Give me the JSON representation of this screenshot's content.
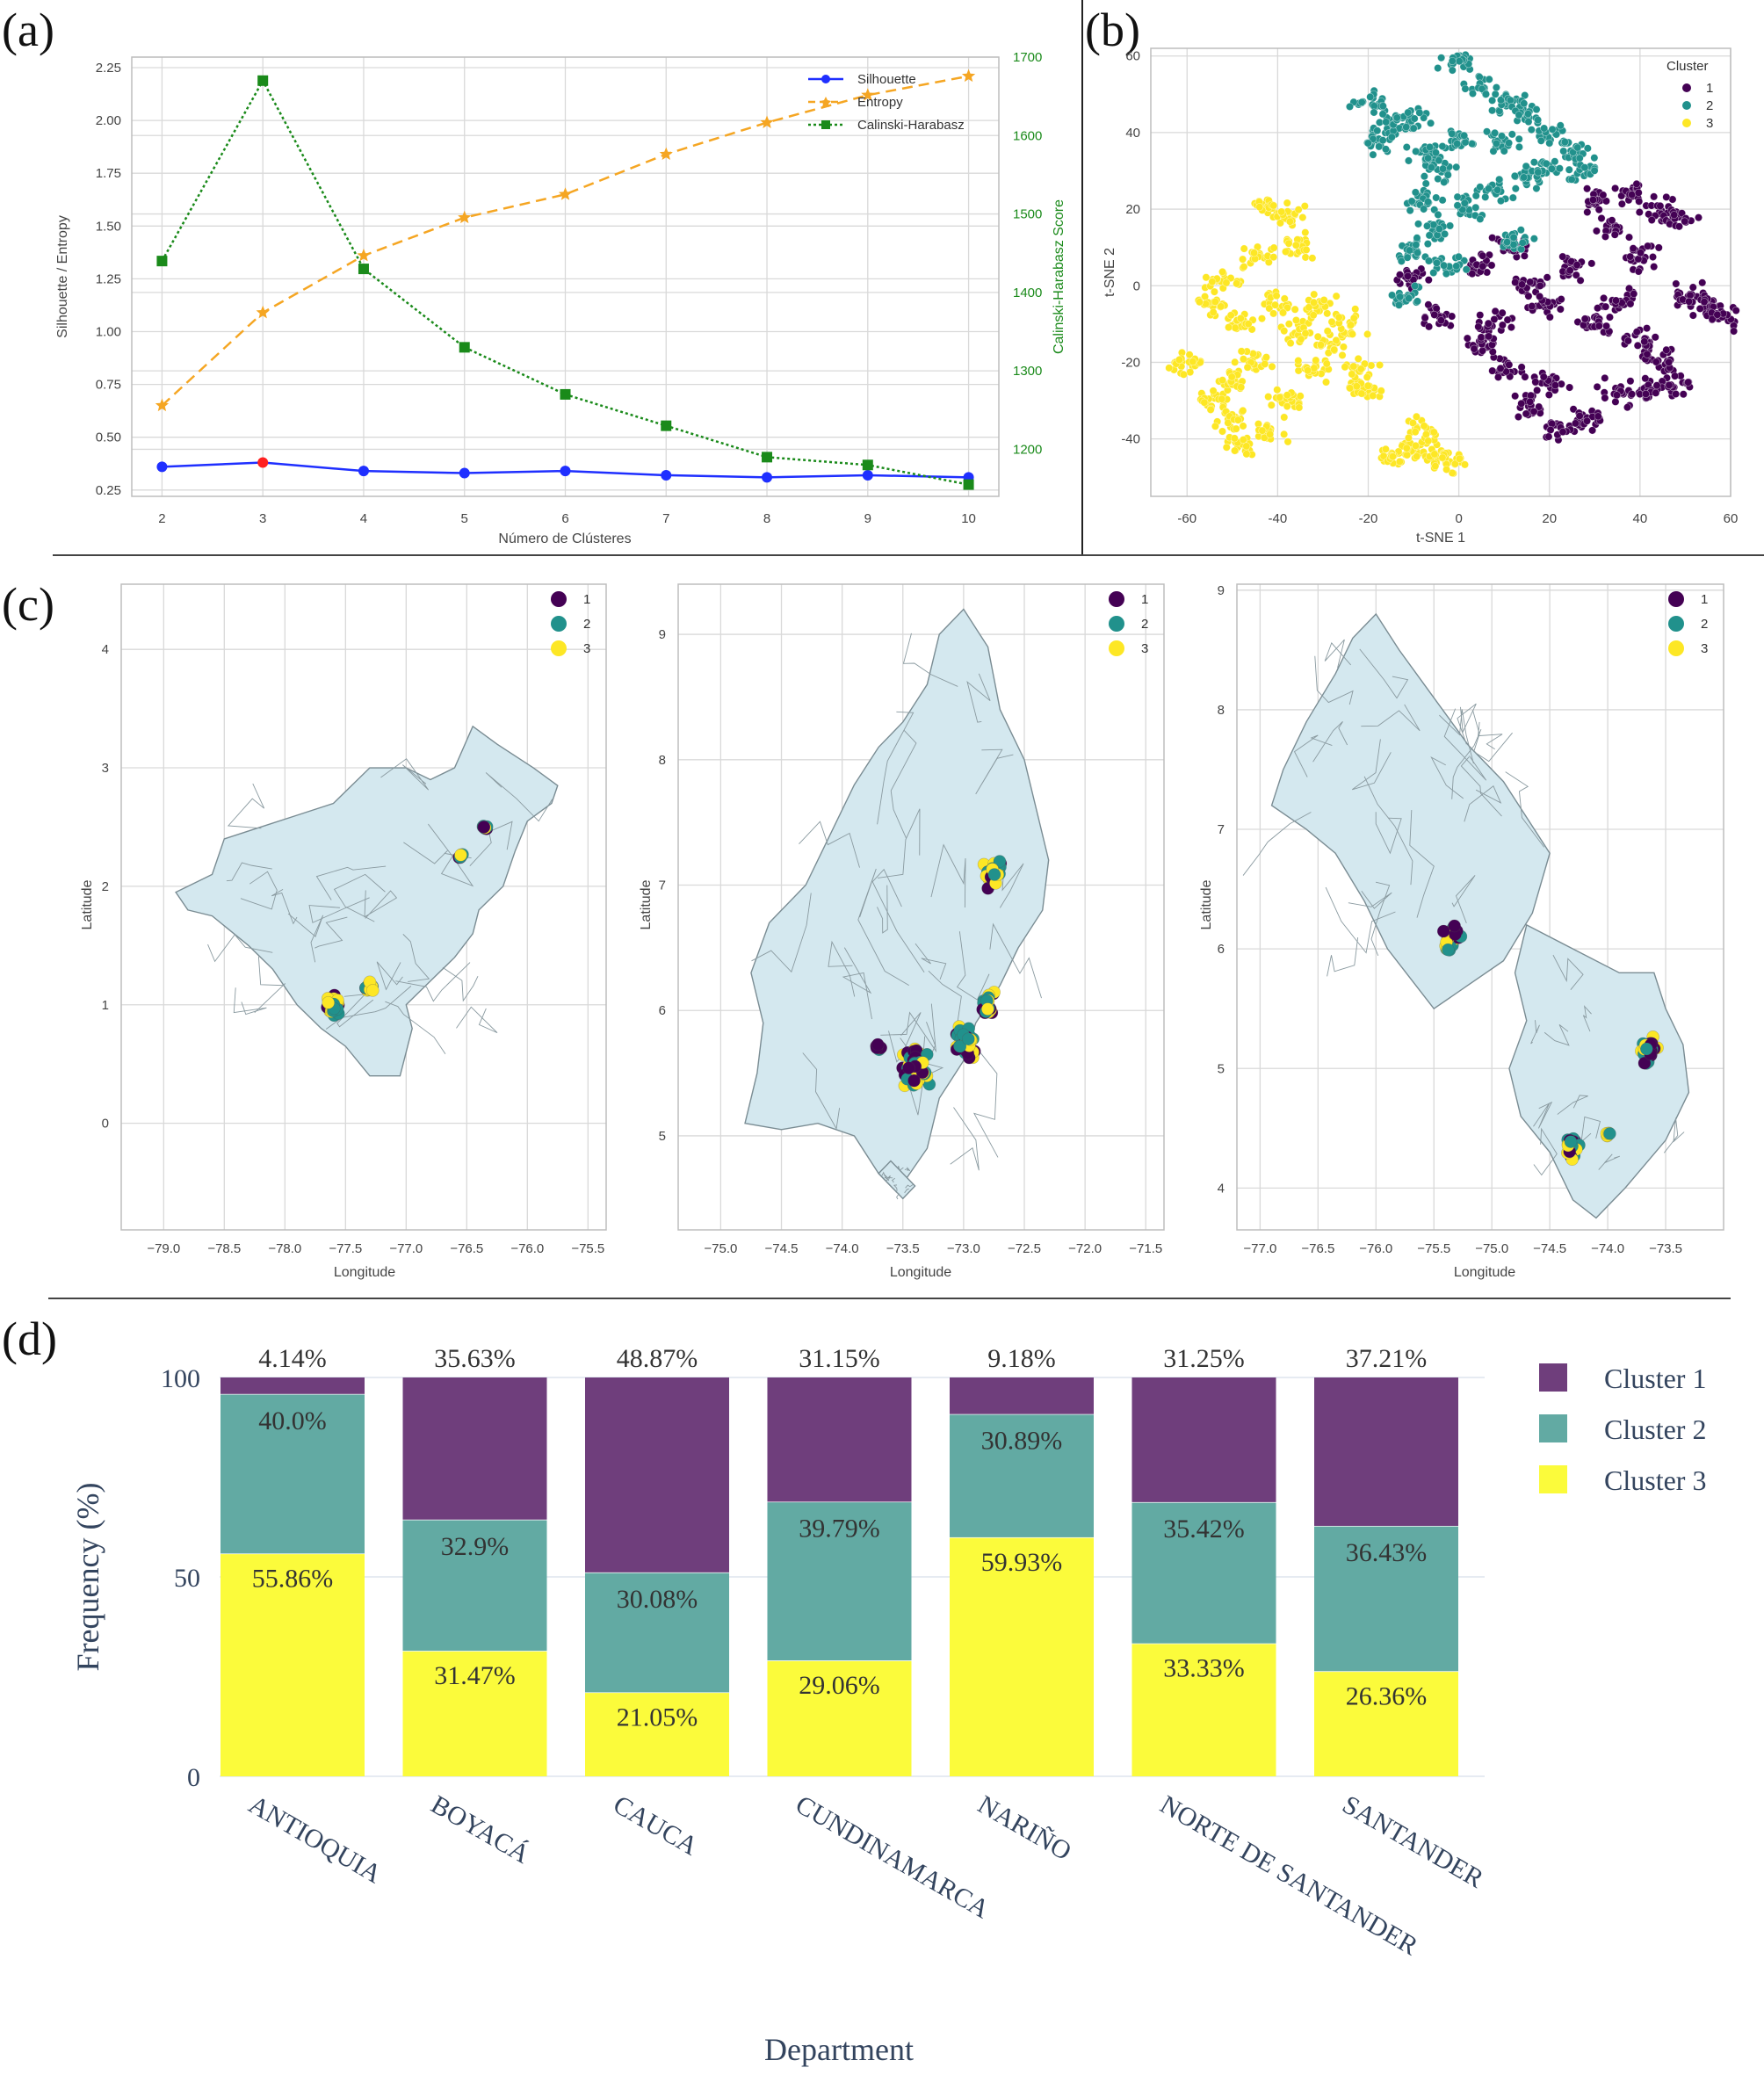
{
  "panel_labels": [
    "(a)",
    "(b)",
    "(c)",
    "(d)"
  ],
  "colors": {
    "silhouette": "#1f2fff",
    "entropy": "#f5a623",
    "calinski": "#1a8a1a",
    "highlight": "#ff2020",
    "cluster1": "#440154",
    "cluster2": "#21918c",
    "cluster3": "#fde725",
    "bar1": "#6f3e7c",
    "bar2": "#62aaa3",
    "bar3": "#fbfb3b",
    "map_fill": "#d4e8ef"
  },
  "chart_data": [
    {
      "id": "a",
      "type": "line",
      "x": [
        2,
        3,
        4,
        5,
        6,
        7,
        8,
        9,
        10
      ],
      "xlabel": "Número de Clústeres",
      "ylabel": "Silhouette / Entropy",
      "ylabel_right": "Calinski-Harabasz Score",
      "ylim": [
        0.22,
        2.3
      ],
      "ylim_right": [
        1140,
        1700
      ],
      "yticks": [
        "0.25",
        "0.50",
        "0.75",
        "1.00",
        "1.25",
        "1.50",
        "1.75",
        "2.00",
        "2.25"
      ],
      "yticks_right": [
        "1200",
        "1300",
        "1400",
        "1500",
        "1600",
        "1700"
      ],
      "series": [
        {
          "name": "Silhouette",
          "axis": "left",
          "values": [
            0.36,
            0.38,
            0.34,
            0.33,
            0.34,
            0.32,
            0.31,
            0.32,
            0.31
          ]
        },
        {
          "name": "Entropy",
          "axis": "left",
          "values": [
            0.65,
            1.09,
            1.36,
            1.54,
            1.65,
            1.84,
            1.99,
            2.12,
            2.21
          ]
        },
        {
          "name": "Calinski-Harabasz",
          "axis": "right",
          "values": [
            1440,
            1670,
            1430,
            1330,
            1270,
            1230,
            1190,
            1180,
            1155
          ]
        }
      ],
      "highlight_x": 3
    },
    {
      "id": "b",
      "type": "scatter",
      "xlabel": "t-SNE 1",
      "ylabel": "t-SNE 2",
      "xlim": [
        -68,
        60
      ],
      "ylim": [
        -55,
        62
      ],
      "xticks": [
        "-60",
        "-40",
        "-20",
        "0",
        "20",
        "40",
        "60"
      ],
      "yticks": [
        "-40",
        "-20",
        "0",
        "20",
        "40",
        "60"
      ],
      "legend_title": "Cluster",
      "legend": [
        "1",
        "2",
        "3"
      ],
      "regions": [
        {
          "cluster": 1,
          "points": [
            [
              30,
              22
            ],
            [
              38,
              24
            ],
            [
              44,
              20
            ],
            [
              48,
              18
            ],
            [
              34,
              14
            ],
            [
              40,
              8
            ],
            [
              50,
              -2
            ],
            [
              55,
              -5
            ],
            [
              58,
              -8
            ],
            [
              25,
              5
            ],
            [
              15,
              0
            ],
            [
              20,
              -5
            ],
            [
              30,
              -10
            ],
            [
              40,
              -14
            ],
            [
              45,
              -20
            ],
            [
              48,
              -26
            ],
            [
              35,
              -28
            ],
            [
              28,
              -35
            ],
            [
              22,
              -38
            ],
            [
              15,
              -32
            ],
            [
              10,
              -22
            ],
            [
              5,
              -15
            ],
            [
              -5,
              -8
            ],
            [
              -10,
              2
            ],
            [
              5,
              5
            ],
            [
              12,
              10
            ],
            [
              35,
              -4
            ],
            [
              42,
              -28
            ],
            [
              20,
              -25
            ],
            [
              8,
              -10
            ]
          ]
        },
        {
          "cluster": 2,
          "points": [
            [
              -20,
              48
            ],
            [
              -15,
              42
            ],
            [
              -10,
              44
            ],
            [
              -18,
              38
            ],
            [
              0,
              58
            ],
            [
              5,
              52
            ],
            [
              10,
              48
            ],
            [
              15,
              45
            ],
            [
              20,
              40
            ],
            [
              25,
              35
            ],
            [
              28,
              30
            ],
            [
              10,
              38
            ],
            [
              0,
              38
            ],
            [
              -5,
              30
            ],
            [
              -8,
              22
            ],
            [
              -5,
              15
            ],
            [
              2,
              20
            ],
            [
              8,
              25
            ],
            [
              15,
              28
            ],
            [
              -10,
              10
            ],
            [
              -3,
              6
            ],
            [
              -12,
              -2
            ],
            [
              12,
              12
            ],
            [
              20,
              30
            ],
            [
              -7,
              35
            ]
          ]
        },
        {
          "cluster": 3,
          "points": [
            [
              -42,
              20
            ],
            [
              -38,
              18
            ],
            [
              -36,
              10
            ],
            [
              -45,
              8
            ],
            [
              -52,
              2
            ],
            [
              -55,
              -5
            ],
            [
              -48,
              -10
            ],
            [
              -40,
              -5
            ],
            [
              -35,
              -12
            ],
            [
              -28,
              -15
            ],
            [
              -22,
              -22
            ],
            [
              -20,
              -28
            ],
            [
              -32,
              -22
            ],
            [
              -45,
              -20
            ],
            [
              -60,
              -20
            ],
            [
              -55,
              -30
            ],
            [
              -50,
              -35
            ],
            [
              -42,
              -38
            ],
            [
              -38,
              -30
            ],
            [
              -48,
              -42
            ],
            [
              -10,
              -42
            ],
            [
              -5,
              -44
            ],
            [
              -2,
              -46
            ],
            [
              -8,
              -38
            ],
            [
              -15,
              -45
            ],
            [
              -30,
              -5
            ],
            [
              -25,
              -10
            ],
            [
              -50,
              -25
            ]
          ]
        }
      ]
    },
    {
      "id": "c",
      "type": "scatter",
      "xlabel": "Longitude",
      "ylabel": "Latitude",
      "legend": [
        "1",
        "2",
        "3"
      ],
      "maps": [
        {
          "xlim": [
            -79.35,
            -75.35
          ],
          "ylim": [
            -0.9,
            4.55
          ],
          "xticks": [
            -79.0,
            -78.5,
            -78.0,
            -77.5,
            -77.0,
            -76.5,
            -76.0,
            -75.5
          ],
          "yticks": [
            0,
            1,
            2,
            3,
            4
          ]
        },
        {
          "xlim": [
            -75.35,
            -71.35
          ],
          "ylim": [
            4.25,
            9.4
          ],
          "xticks": [
            -75.0,
            -74.5,
            -74.0,
            -73.5,
            -73.0,
            -72.5,
            -72.0,
            -71.5
          ],
          "yticks": [
            5,
            6,
            7,
            8,
            9
          ]
        },
        {
          "xlim": [
            -77.2,
            -73.0
          ],
          "ylim": [
            3.65,
            9.05
          ],
          "xticks": [
            -77.0,
            -76.5,
            -76.0,
            -75.5,
            -75.0,
            -74.5,
            -74.0,
            -73.5
          ],
          "yticks": [
            4,
            5,
            6,
            7,
            8,
            9
          ]
        }
      ]
    },
    {
      "id": "d",
      "type": "bar",
      "stacked": true,
      "categories": [
        "ANTIOQUIA",
        "BOYACÁ",
        "CAUCA",
        "CUNDINAMARCA",
        "NARIÑO",
        "NORTE DE SANTANDER",
        "SANTANDER"
      ],
      "series": [
        {
          "name": "Cluster 3",
          "values": [
            55.86,
            31.47,
            21.05,
            29.06,
            59.93,
            33.33,
            26.36
          ],
          "labels": [
            "55.86%",
            "31.47%",
            "21.05%",
            "29.06%",
            "59.93%",
            "33.33%",
            "26.36%"
          ]
        },
        {
          "name": "Cluster 2",
          "values": [
            40.0,
            32.9,
            30.08,
            39.79,
            30.89,
            35.42,
            36.43
          ],
          "labels": [
            "40.0%",
            "32.9%",
            "30.08%",
            "39.79%",
            "30.89%",
            "35.42%",
            "36.43%"
          ]
        },
        {
          "name": "Cluster 1",
          "values": [
            4.14,
            35.63,
            48.87,
            31.15,
            9.18,
            31.25,
            37.21
          ],
          "labels": [
            "4.14%",
            "35.63%",
            "48.87%",
            "31.15%",
            "9.18%",
            "31.25%",
            "37.21%"
          ]
        }
      ],
      "legend": [
        "Cluster 1",
        "Cluster 2",
        "Cluster 3"
      ],
      "xlabel": "Department",
      "ylabel": "Frequency (%)",
      "ylim": [
        0,
        100
      ],
      "yticks": [
        "0",
        "50",
        "100"
      ]
    }
  ]
}
